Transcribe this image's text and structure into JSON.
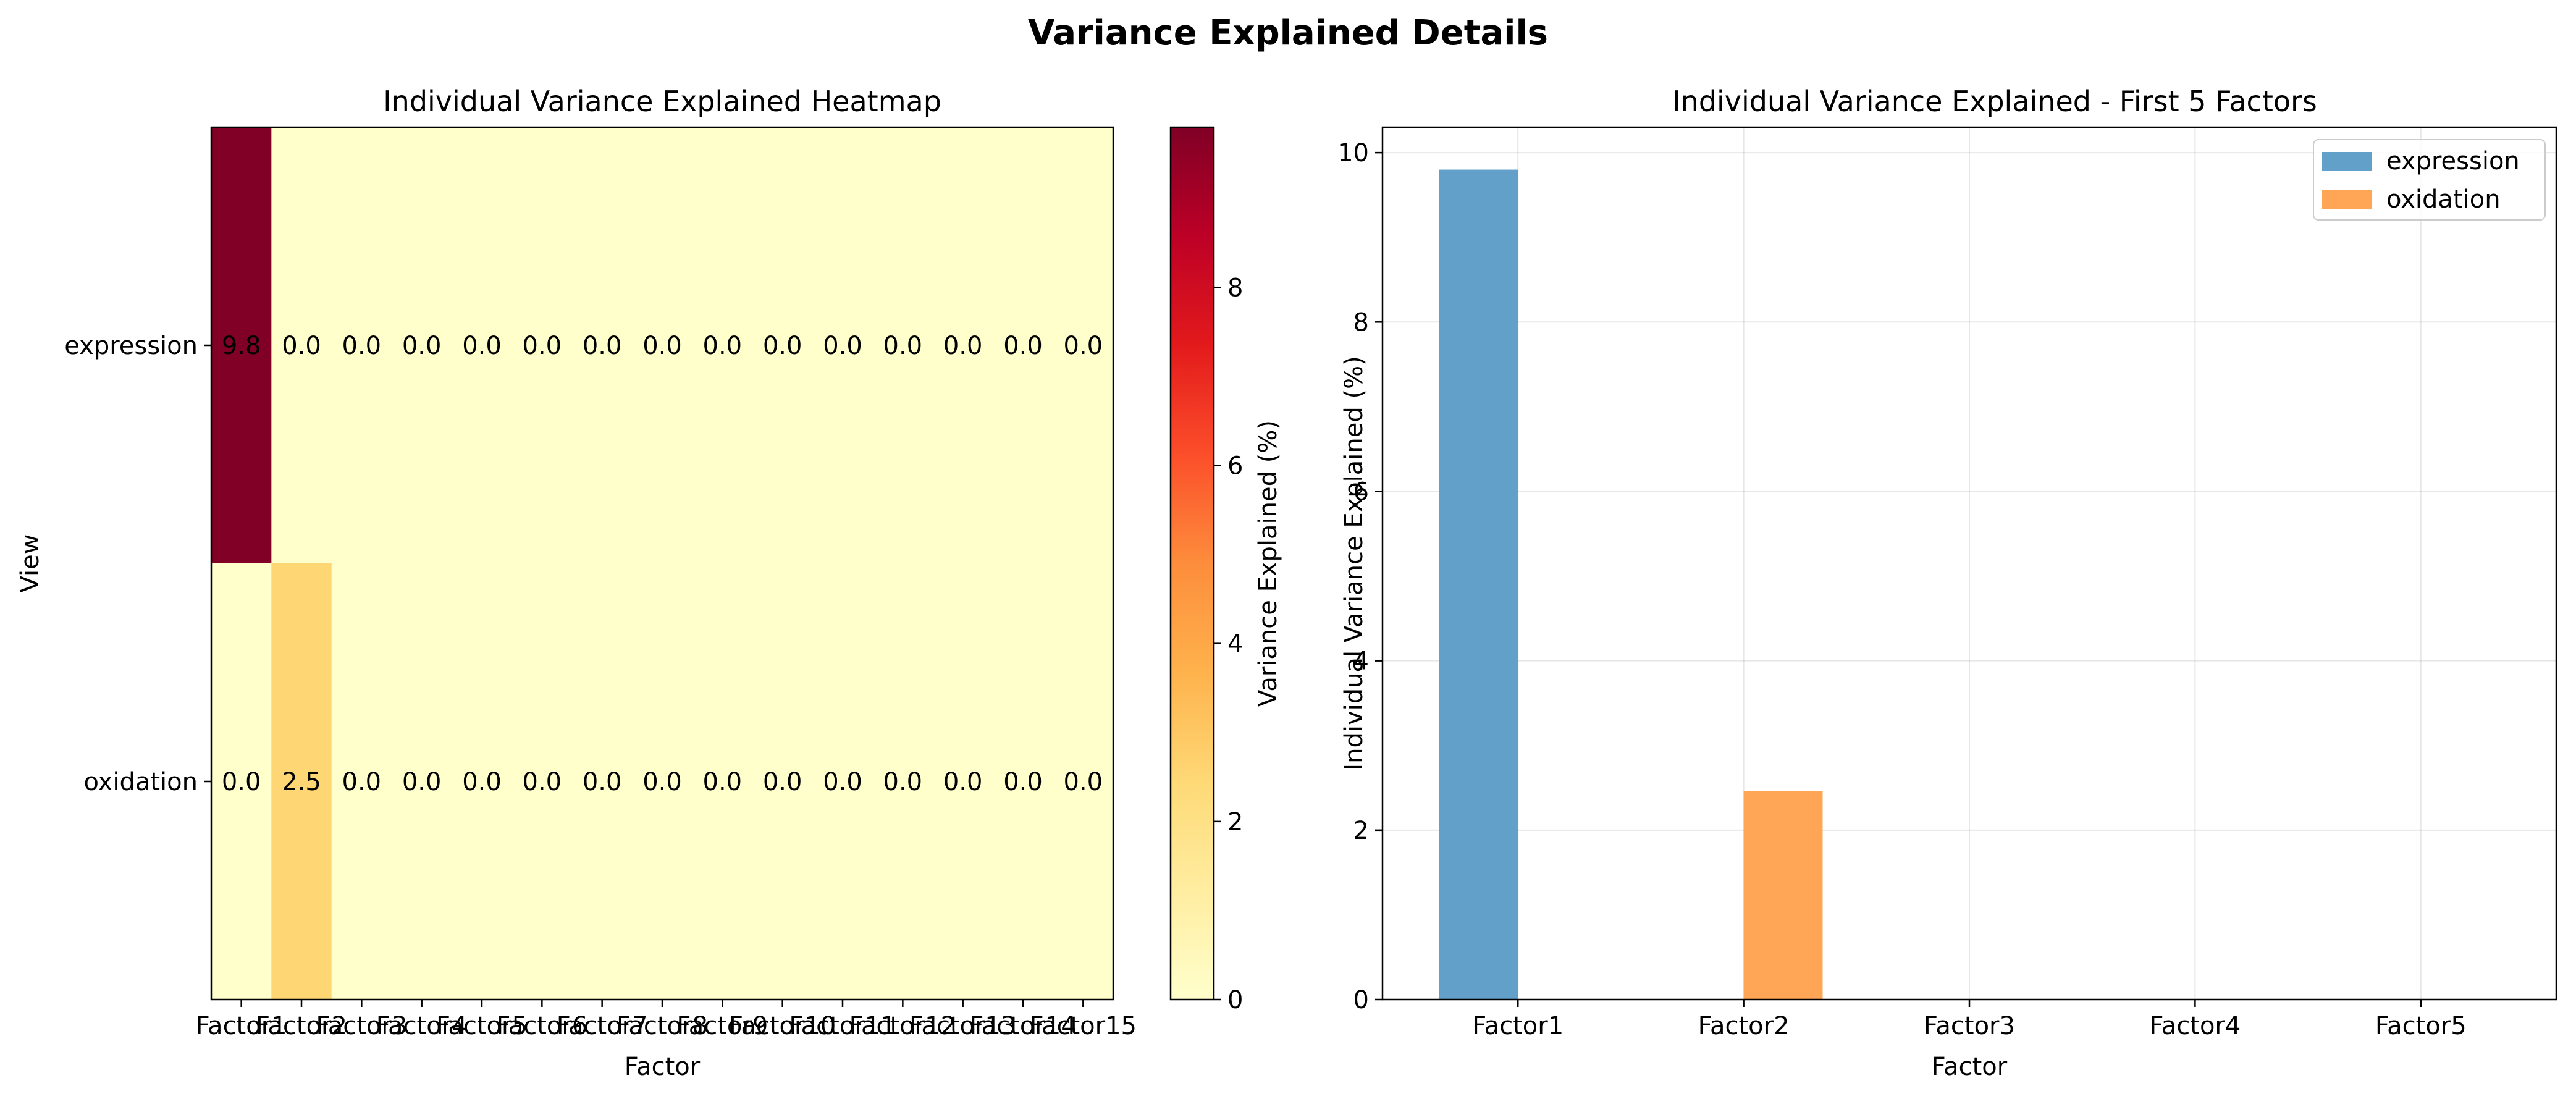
{
  "figure": {
    "suptitle": "Variance Explained Details"
  },
  "chart_data": [
    {
      "type": "heatmap",
      "title": "Individual Variance Explained Heatmap",
      "xlabel": "Factor",
      "ylabel": "View",
      "x_categories": [
        "Factor1",
        "Factor2",
        "Factor3",
        "Factor4",
        "Factor5",
        "Factor6",
        "Factor7",
        "Factor8",
        "Factor9",
        "Factor10",
        "Factor11",
        "Factor12",
        "Factor13",
        "Factor14",
        "Factor15"
      ],
      "y_categories": [
        "expression",
        "oxidation"
      ],
      "values": [
        [
          9.8,
          0.0,
          0.0,
          0.0,
          0.0,
          0.0,
          0.0,
          0.0,
          0.0,
          0.0,
          0.0,
          0.0,
          0.0,
          0.0,
          0.0
        ],
        [
          0.0,
          2.5,
          0.0,
          0.0,
          0.0,
          0.0,
          0.0,
          0.0,
          0.0,
          0.0,
          0.0,
          0.0,
          0.0,
          0.0,
          0.0
        ]
      ],
      "cell_labels": [
        [
          "9.8",
          "0.0",
          "0.0",
          "0.0",
          "0.0",
          "0.0",
          "0.0",
          "0.0",
          "0.0",
          "0.0",
          "0.0",
          "0.0",
          "0.0",
          "0.0",
          "0.0"
        ],
        [
          "0.0",
          "2.5",
          "0.0",
          "0.0",
          "0.0",
          "0.0",
          "0.0",
          "0.0",
          "0.0",
          "0.0",
          "0.0",
          "0.0",
          "0.0",
          "0.0",
          "0.0"
        ]
      ],
      "colormap": "YlOrRd",
      "colorbar": {
        "label": "Variance Explained (%)",
        "range": [
          0,
          9.8
        ],
        "ticks": [
          0,
          2,
          4,
          6,
          8
        ],
        "tick_labels": [
          "0",
          "2",
          "4",
          "6",
          "8"
        ]
      }
    },
    {
      "type": "bar",
      "title": "Individual Variance Explained - First 5 Factors",
      "xlabel": "Factor",
      "ylabel": "Individual Variance Explained (%)",
      "categories": [
        "Factor1",
        "Factor2",
        "Factor3",
        "Factor4",
        "Factor5"
      ],
      "series": [
        {
          "name": "expression",
          "values": [
            9.8,
            0.0,
            0.0,
            0.0,
            0.0
          ],
          "color": "#62a0ca"
        },
        {
          "name": "oxidation",
          "values": [
            0.0,
            2.46,
            0.0,
            0.0,
            0.0
          ],
          "color": "#ffa556"
        }
      ],
      "ylim": [
        0,
        10.3
      ],
      "yticks": [
        0,
        2,
        4,
        6,
        8,
        10
      ],
      "ytick_labels": [
        "0",
        "2",
        "4",
        "6",
        "8",
        "10"
      ],
      "grid": true,
      "legend": "top-right"
    }
  ]
}
